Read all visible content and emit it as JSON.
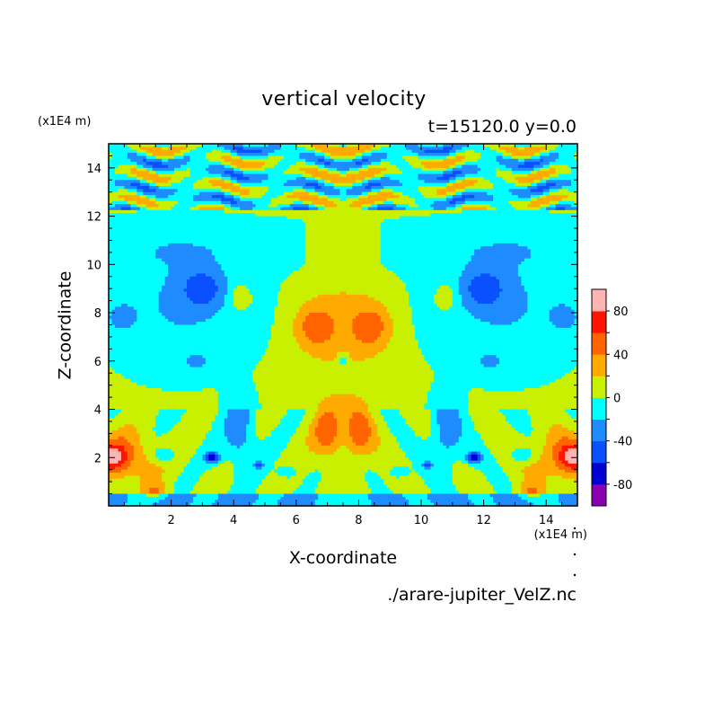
{
  "chart_data": {
    "type": "heatmap",
    "title": "vertical velocity",
    "subtitle": "t=15120.0 y=0.0",
    "xlabel": "X-coordinate",
    "ylabel": "Z-coordinate",
    "x_unit": "(x1E4 m)",
    "y_unit": "(x1E4 m)",
    "xlim": [
      0.0,
      15.0
    ],
    "ylim": [
      0.0,
      15.0
    ],
    "x_ticks": [
      2,
      4,
      6,
      8,
      10,
      12,
      14
    ],
    "y_ticks": [
      2,
      4,
      6,
      8,
      10,
      12,
      14
    ],
    "colorbar": {
      "levels": [
        -100,
        -80,
        -60,
        -40,
        -20,
        0,
        20,
        40,
        60,
        80,
        100
      ],
      "colors": [
        "#8c00b4",
        "#0000d2",
        "#0a50ff",
        "#1e8cff",
        "#00ffff",
        "#c8f000",
        "#ffaa00",
        "#ff6400",
        "#ff1400",
        "#ffb4b4"
      ],
      "tick_labels": [
        "-80",
        "-40",
        "0",
        "40",
        "80"
      ],
      "tick_values": [
        -80,
        -40,
        0,
        40,
        80
      ]
    },
    "blobs": [
      {
        "x": 0.3,
        "z": 2.0,
        "w": 50,
        "rx": 1.1,
        "rz": 1.0
      },
      {
        "x": 14.7,
        "z": 2.0,
        "w": 50,
        "rx": 1.1,
        "rz": 1.0
      },
      {
        "x": 0.1,
        "z": 2.0,
        "w": 40,
        "rx": 0.45,
        "rz": 0.45
      },
      {
        "x": 14.9,
        "z": 2.0,
        "w": 40,
        "rx": 0.45,
        "rz": 0.45
      },
      {
        "x": 6.6,
        "z": 7.4,
        "w": 45,
        "rx": 0.7,
        "rz": 1.0
      },
      {
        "x": 8.4,
        "z": 7.4,
        "w": 45,
        "rx": 0.7,
        "rz": 1.0
      },
      {
        "x": 7.0,
        "z": 3.0,
        "w": 45,
        "rx": 0.45,
        "rz": 1.0
      },
      {
        "x": 8.0,
        "z": 3.0,
        "w": 45,
        "rx": 0.45,
        "rz": 1.0
      },
      {
        "x": 4.2,
        "z": 8.6,
        "w": 30,
        "rx": 0.3,
        "rz": 0.5
      },
      {
        "x": 10.8,
        "z": 8.6,
        "w": 30,
        "rx": 0.3,
        "rz": 0.5
      },
      {
        "x": 1.5,
        "z": 0.6,
        "w": 30,
        "rx": 0.4,
        "rz": 0.35
      },
      {
        "x": 13.5,
        "z": 0.6,
        "w": 30,
        "rx": 0.4,
        "rz": 0.35
      },
      {
        "x": 3.0,
        "z": 9.0,
        "w": -40,
        "rx": 0.65,
        "rz": 0.75
      },
      {
        "x": 12.0,
        "z": 9.0,
        "w": -40,
        "rx": 0.65,
        "rz": 0.75
      },
      {
        "x": 4.2,
        "z": 3.0,
        "w": -40,
        "rx": 0.5,
        "rz": 1.4
      },
      {
        "x": 10.8,
        "z": 3.0,
        "w": -40,
        "rx": 0.5,
        "rz": 1.4
      },
      {
        "x": 3.3,
        "z": 2.0,
        "w": -65,
        "rx": 0.25,
        "rz": 0.25
      },
      {
        "x": 11.7,
        "z": 2.0,
        "w": -65,
        "rx": 0.25,
        "rz": 0.25
      },
      {
        "x": 1.8,
        "z": 2.1,
        "w": -35,
        "rx": 0.35,
        "rz": 0.3
      },
      {
        "x": 13.2,
        "z": 2.1,
        "w": -35,
        "rx": 0.35,
        "rz": 0.3
      },
      {
        "x": 0.4,
        "z": 7.8,
        "w": -30,
        "rx": 0.4,
        "rz": 0.5
      },
      {
        "x": 14.6,
        "z": 7.8,
        "w": -30,
        "rx": 0.4,
        "rz": 0.5
      },
      {
        "x": 7.5,
        "z": 6.0,
        "w": -30,
        "rx": 0.15,
        "rz": 0.3
      },
      {
        "x": 5.7,
        "z": 1.4,
        "w": -30,
        "rx": 0.3,
        "rz": 0.25
      },
      {
        "x": 9.3,
        "z": 1.4,
        "w": -30,
        "rx": 0.3,
        "rz": 0.25
      },
      {
        "x": 2.8,
        "z": 6.0,
        "w": -30,
        "rx": 0.3,
        "rz": 0.3
      },
      {
        "x": 12.2,
        "z": 6.0,
        "w": -30,
        "rx": 0.3,
        "rz": 0.3
      },
      {
        "x": 4.8,
        "z": 1.7,
        "w": -40,
        "rx": 0.15,
        "rz": 0.15
      },
      {
        "x": 10.2,
        "z": 1.7,
        "w": -40,
        "rx": 0.15,
        "rz": 0.15
      }
    ]
  },
  "source_label": "./arare-jupiter_VelZ.nc"
}
